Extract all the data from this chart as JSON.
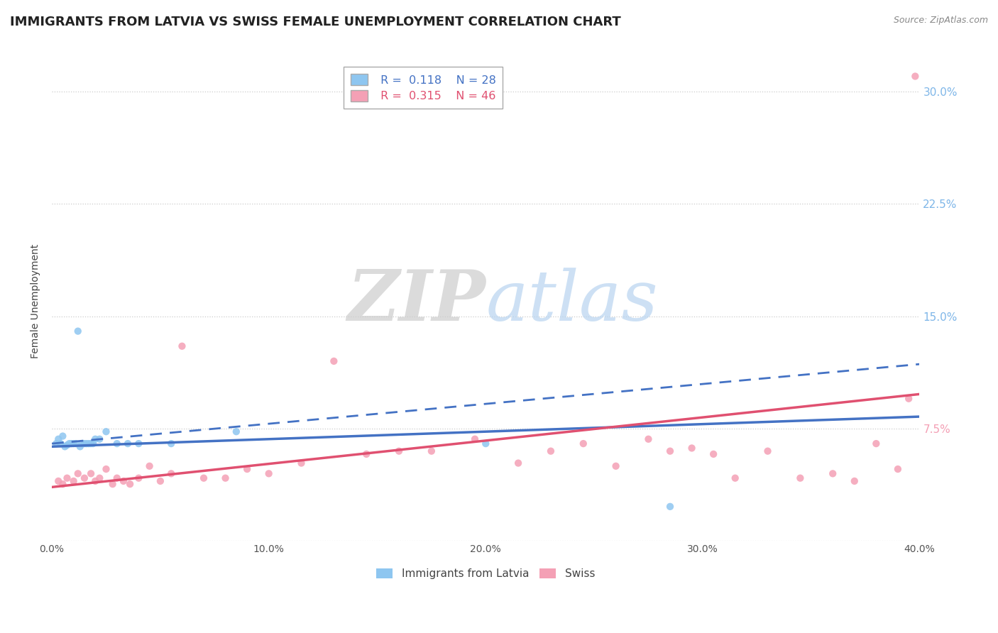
{
  "title": "IMMIGRANTS FROM LATVIA VS SWISS FEMALE UNEMPLOYMENT CORRELATION CHART",
  "source": "Source: ZipAtlas.com",
  "ylabel_label": "Female Unemployment",
  "x_min": 0.0,
  "x_max": 0.4,
  "y_min": 0.0,
  "y_max": 0.32,
  "x_ticks": [
    0.0,
    0.1,
    0.2,
    0.3,
    0.4
  ],
  "x_tick_labels": [
    "0.0%",
    "10.0%",
    "20.0%",
    "30.0%",
    "40.0%"
  ],
  "y_ticks": [
    0.0,
    0.075,
    0.15,
    0.225,
    0.3
  ],
  "y_tick_labels": [
    "",
    "7.5%",
    "15.0%",
    "22.5%",
    "30.0%"
  ],
  "legend_R_latvia": "0.118",
  "legend_N_latvia": "28",
  "legend_R_swiss": "0.315",
  "legend_N_swiss": "46",
  "color_latvia": "#8ec6f0",
  "color_swiss": "#f4a0b5",
  "color_latvia_line": "#4472c4",
  "color_swiss_line": "#e05070",
  "background_color": "#ffffff",
  "grid_color": "#cccccc",
  "title_fontsize": 13,
  "axis_fontsize": 10,
  "tick_fontsize": 10,
  "latvia_x": [
    0.002,
    0.003,
    0.004,
    0.005,
    0.006,
    0.007,
    0.008,
    0.009,
    0.01,
    0.011,
    0.012,
    0.013,
    0.014,
    0.015,
    0.016,
    0.017,
    0.018,
    0.019,
    0.02,
    0.022,
    0.025,
    0.03,
    0.035,
    0.04,
    0.055,
    0.085,
    0.2,
    0.285
  ],
  "latvia_y": [
    0.065,
    0.068,
    0.065,
    0.07,
    0.063,
    0.064,
    0.065,
    0.065,
    0.065,
    0.065,
    0.14,
    0.063,
    0.065,
    0.065,
    0.065,
    0.065,
    0.065,
    0.065,
    0.068,
    0.068,
    0.073,
    0.065,
    0.065,
    0.065,
    0.065,
    0.073,
    0.065,
    0.023
  ],
  "swiss_x": [
    0.003,
    0.005,
    0.007,
    0.01,
    0.012,
    0.015,
    0.018,
    0.02,
    0.022,
    0.025,
    0.028,
    0.03,
    0.033,
    0.036,
    0.04,
    0.045,
    0.05,
    0.055,
    0.06,
    0.07,
    0.08,
    0.09,
    0.1,
    0.115,
    0.13,
    0.145,
    0.16,
    0.175,
    0.195,
    0.215,
    0.23,
    0.245,
    0.26,
    0.275,
    0.285,
    0.295,
    0.305,
    0.315,
    0.33,
    0.345,
    0.36,
    0.37,
    0.38,
    0.39,
    0.395,
    0.398
  ],
  "swiss_y": [
    0.04,
    0.038,
    0.042,
    0.04,
    0.045,
    0.042,
    0.045,
    0.04,
    0.042,
    0.048,
    0.038,
    0.042,
    0.04,
    0.038,
    0.042,
    0.05,
    0.04,
    0.045,
    0.13,
    0.042,
    0.042,
    0.048,
    0.045,
    0.052,
    0.12,
    0.058,
    0.06,
    0.06,
    0.068,
    0.052,
    0.06,
    0.065,
    0.05,
    0.068,
    0.06,
    0.062,
    0.058,
    0.042,
    0.06,
    0.042,
    0.045,
    0.04,
    0.065,
    0.048,
    0.095,
    0.31
  ],
  "line_latvia_x0": 0.0,
  "line_latvia_y0": 0.063,
  "line_latvia_x1": 0.4,
  "line_latvia_y1": 0.083,
  "line_swiss_x0": 0.0,
  "line_swiss_y0": 0.036,
  "line_swiss_x1": 0.4,
  "line_swiss_y1": 0.098,
  "line_dashed_x0": 0.0,
  "line_dashed_y0": 0.065,
  "line_dashed_x1": 0.4,
  "line_dashed_y1": 0.118
}
